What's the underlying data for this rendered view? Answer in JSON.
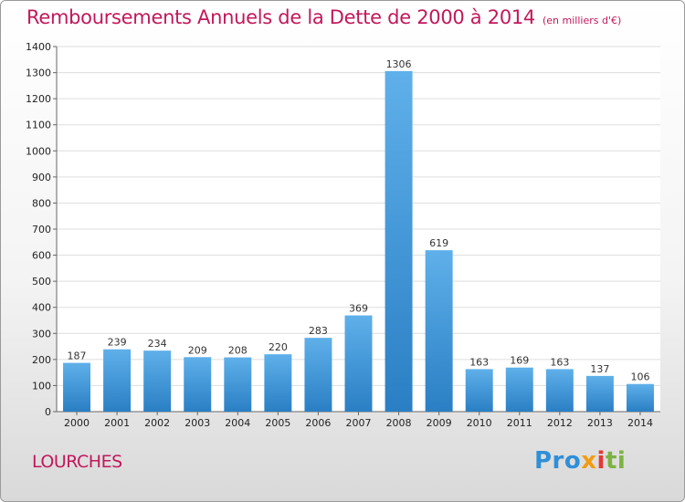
{
  "chart_data": {
    "type": "bar",
    "title": "Remboursements Annuels de la Dette de 2000 à 2014",
    "subtitle": "(en milliers d'€)",
    "categories": [
      "2000",
      "2001",
      "2002",
      "2003",
      "2004",
      "2005",
      "2006",
      "2007",
      "2008",
      "2009",
      "2010",
      "2011",
      "2012",
      "2013",
      "2014"
    ],
    "values": [
      187,
      239,
      234,
      209,
      208,
      220,
      283,
      369,
      1306,
      619,
      163,
      169,
      163,
      137,
      106
    ],
    "ylim": [
      0,
      1400
    ],
    "yticks": [
      0,
      100,
      200,
      300,
      400,
      500,
      600,
      700,
      800,
      900,
      1000,
      1100,
      1200,
      1300,
      1400
    ],
    "grid": true,
    "bar_color": "#3a94dc",
    "grid_color": "#dddddd"
  },
  "footer": {
    "commune": "LOURCHES",
    "logo": {
      "part1": "Pro",
      "part2": "x",
      "part3": "i",
      "part4": "ti"
    }
  },
  "colors": {
    "title": "#c2185b",
    "commune": "#c2185b"
  }
}
